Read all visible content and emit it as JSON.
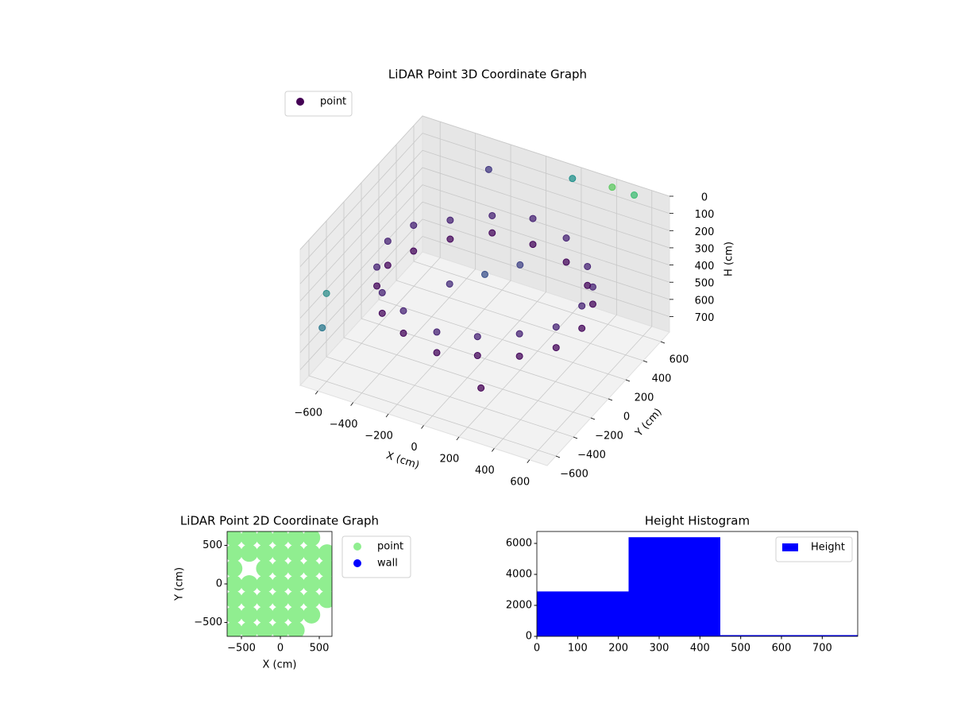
{
  "chart_data": [
    {
      "type": "scatter3d",
      "title": "LiDAR Point 3D Coordinate Graph",
      "xlabel": "X (cm)",
      "ylabel": "Y (cm)",
      "zlabel": "H (cm)",
      "xlim": [
        -700,
        700
      ],
      "ylim": [
        -700,
        700
      ],
      "zlim": [
        0,
        790
      ],
      "invert_z": true,
      "xticks": [
        {
          "value": -600,
          "label": "−600"
        },
        {
          "value": -400,
          "label": "−400"
        },
        {
          "value": -200,
          "label": "−200"
        },
        0,
        200,
        400,
        600
      ],
      "yticks": [
        {
          "value": -600,
          "label": "−600"
        },
        {
          "value": -400,
          "label": "−400"
        },
        {
          "value": -200,
          "label": "−200"
        },
        0,
        200,
        400,
        600
      ],
      "zticks": [
        0,
        100,
        200,
        300,
        400,
        500,
        600,
        700
      ],
      "grid": true,
      "legend": "upper left",
      "series": [
        {
          "name": "point",
          "color": "#440154",
          "x": [
            550,
            508,
            389,
            210,
            0,
            -210,
            -389,
            -508,
            -550,
            -508,
            -389,
            -210,
            0,
            210,
            389,
            508,
            550,
            508,
            389,
            210,
            0,
            -210,
            -389,
            -508,
            -550,
            -508,
            -389,
            -210,
            0,
            210,
            389,
            508,
            0,
            150,
            -150,
            -650,
            -600,
            400,
            150,
            500,
            -300,
            300
          ],
          "y": [
            0,
            210,
            389,
            508,
            550,
            508,
            389,
            210,
            0,
            -210,
            -389,
            -508,
            -550,
            -508,
            -389,
            -210,
            0,
            210,
            389,
            508,
            550,
            508,
            389,
            210,
            0,
            -210,
            -389,
            -508,
            -550,
            -508,
            -389,
            -210,
            0,
            100,
            -100,
            -500,
            -650,
            650,
            700,
            700,
            650,
            -650
          ],
          "z": [
            300,
            320,
            340,
            300,
            280,
            310,
            330,
            300,
            290,
            310,
            320,
            300,
            330,
            310,
            300,
            320,
            430,
            420,
            450,
            440,
            430,
            410,
            440,
            450,
            430,
            420,
            440,
            430,
            450,
            420,
            430,
            440,
            300,
            250,
            350,
            350,
            450,
            20,
            80,
            60,
            150,
            500
          ],
          "colors": [
            "#482475",
            "#482475",
            "#482475",
            "#482475",
            "#482475",
            "#482475",
            "#482475",
            "#482475",
            "#482475",
            "#482475",
            "#482475",
            "#482475",
            "#482475",
            "#482475",
            "#482475",
            "#482475",
            "#46085c",
            "#46085c",
            "#46085c",
            "#46085c",
            "#46085c",
            "#46085c",
            "#46085c",
            "#46085c",
            "#46085c",
            "#46085c",
            "#46085c",
            "#46085c",
            "#46085c",
            "#46085c",
            "#46085c",
            "#46085c",
            "#3b528b",
            "#414487",
            "#472d7b",
            "#31908d",
            "#2a788e",
            "#5ec962",
            "#21918c",
            "#3fbc73",
            "#443983",
            "#440154"
          ]
        }
      ]
    },
    {
      "type": "scatter",
      "title": "LiDAR Point 2D Coordinate Graph",
      "xlabel": "X (cm)",
      "ylabel": "Y (cm)",
      "xlim": [
        -684,
        663
      ],
      "ylim": [
        -680,
        680
      ],
      "xticks": [
        {
          "value": -500,
          "label": "−500"
        },
        0,
        500
      ],
      "yticks": [
        {
          "value": -500,
          "label": "−500"
        },
        0,
        500
      ],
      "legend": "outside upper right",
      "series": [
        {
          "name": "point",
          "color": "#90ee90",
          "x": [
            -600,
            -400,
            -200,
            0,
            200,
            400,
            -600,
            -400,
            -200,
            0,
            200,
            400,
            600,
            -600,
            -200,
            0,
            200,
            400,
            600,
            -600,
            -400,
            -200,
            0,
            200,
            400,
            600,
            -600,
            -400,
            -200,
            0,
            200,
            400,
            600,
            -600,
            -400,
            -200,
            0,
            200,
            400,
            -600,
            -400,
            -200,
            0,
            200
          ],
          "y": [
            600,
            600,
            600,
            600,
            600,
            600,
            400,
            400,
            400,
            400,
            400,
            400,
            400,
            200,
            200,
            200,
            200,
            200,
            200,
            0,
            0,
            0,
            0,
            0,
            0,
            0,
            -200,
            -200,
            -200,
            -200,
            -200,
            -200,
            -200,
            -400,
            -400,
            -400,
            -400,
            -400,
            -400,
            -600,
            -600,
            -600,
            -600,
            -600
          ]
        },
        {
          "name": "wall",
          "color": "#0000ff",
          "x": [],
          "y": []
        }
      ]
    },
    {
      "type": "histogram",
      "title": "Height Histogram",
      "xlim": [
        0,
        787
      ],
      "ylim": [
        0,
        6770
      ],
      "xticks": [
        0,
        100,
        200,
        300,
        400,
        500,
        600,
        700
      ],
      "yticks": [
        0,
        2000,
        4000,
        6000
      ],
      "legend": "upper right",
      "series": [
        {
          "name": "Height",
          "color": "#0000ff",
          "bins": [
            0,
            225,
            450,
            787
          ],
          "counts": [
            2900,
            6400,
            80
          ]
        }
      ]
    }
  ]
}
